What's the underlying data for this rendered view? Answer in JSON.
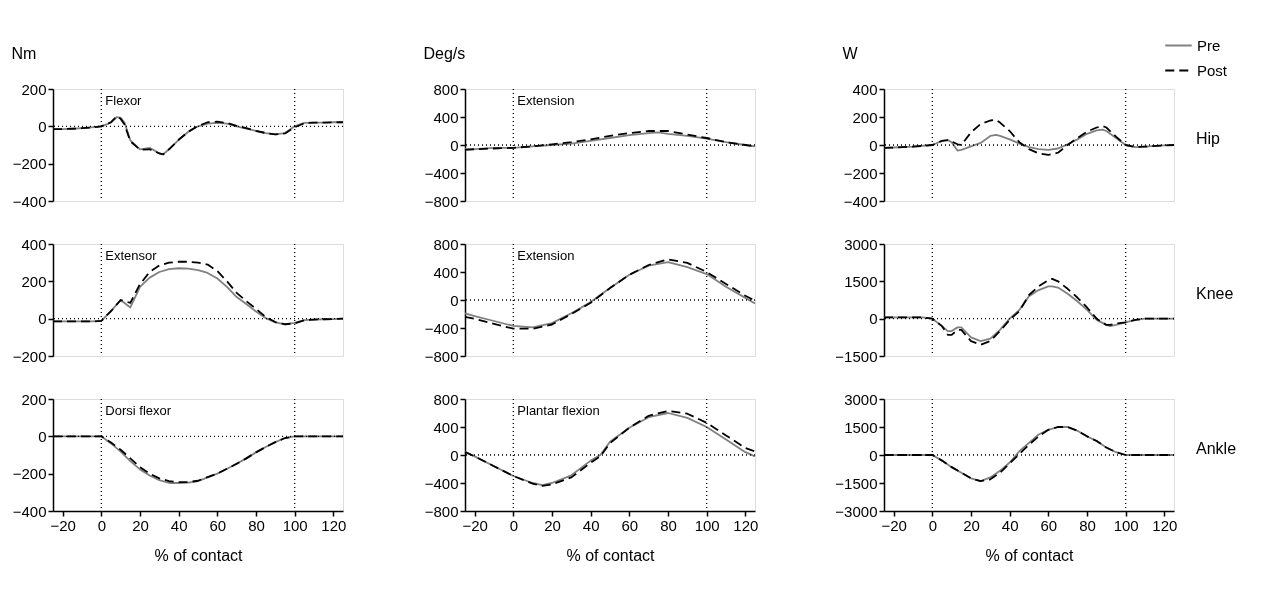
{
  "chart_data": [
    {
      "type": "line",
      "ylabel": "Nm",
      "annotations": [
        "Flexor"
      ],
      "tick_labels": "y",
      "xlim": [
        -25,
        125
      ],
      "ylim": [
        -400,
        200
      ],
      "yticks": [
        -400,
        -200,
        0,
        200
      ],
      "x": [
        -25,
        -20,
        -15,
        -10,
        -5,
        0,
        5,
        8,
        10,
        12,
        15,
        20,
        25,
        30,
        32,
        35,
        40,
        45,
        50,
        55,
        60,
        65,
        70,
        75,
        80,
        85,
        90,
        95,
        100,
        105,
        110,
        115,
        120,
        125
      ],
      "ref_lines": [
        {
          "axis": "x",
          "value": 0,
          "line_style": "dotted"
        },
        {
          "axis": "x",
          "value": 100,
          "line_style": "dotted"
        },
        {
          "axis": "y",
          "value": 0,
          "line_style": "dotted"
        }
      ],
      "series": [
        {
          "color": "#808080",
          "line_style": "solid",
          "values": [
            -15,
            -15,
            -13,
            -10,
            -6,
            0,
            20,
            50,
            45,
            20,
            -75,
            -123,
            -115,
            -145,
            -150,
            -123,
            -72,
            -29,
            0,
            14,
            19,
            14,
            0,
            -12,
            -25,
            -36,
            -43,
            -36,
            0,
            19,
            20,
            20,
            22,
            22
          ]
        },
        {
          "color": "#000000",
          "line_style": "dashed",
          "values": [
            -15,
            -15,
            -13,
            -10,
            -6,
            0,
            22,
            54,
            40,
            10,
            -80,
            -125,
            -123,
            -145,
            -150,
            -123,
            -72,
            -29,
            2,
            22,
            25,
            18,
            3,
            -10,
            -24,
            -36,
            -43,
            -38,
            -5,
            17,
            20,
            20,
            22,
            22
          ]
        }
      ]
    },
    {
      "type": "line",
      "ylabel": "Deg/s",
      "annotations": [
        "Extension"
      ],
      "tick_labels": "y",
      "xlim": [
        -25,
        125
      ],
      "ylim": [
        -800,
        800
      ],
      "yticks": [
        -800,
        -400,
        0,
        400,
        800
      ],
      "x": [
        -25,
        -20,
        -10,
        0,
        10,
        20,
        30,
        40,
        50,
        60,
        70,
        75,
        80,
        90,
        100,
        110,
        120,
        125
      ],
      "ref_lines": [
        {
          "axis": "x",
          "value": 0,
          "line_style": "dotted"
        },
        {
          "axis": "x",
          "value": 100,
          "line_style": "dotted"
        },
        {
          "axis": "y",
          "value": 0,
          "line_style": "dotted"
        }
      ],
      "series": [
        {
          "color": "#808080",
          "line_style": "solid",
          "values": [
            -60,
            -60,
            -40,
            -40,
            -20,
            0,
            20,
            60,
            100,
            140,
            170,
            180,
            160,
            130,
            90,
            40,
            0,
            -20
          ]
        },
        {
          "color": "#000000",
          "line_style": "dashed",
          "values": [
            -70,
            -60,
            -50,
            -40,
            -20,
            10,
            40,
            80,
            130,
            170,
            200,
            200,
            200,
            150,
            100,
            40,
            0,
            -20
          ]
        }
      ]
    },
    {
      "type": "line",
      "ylabel": "W",
      "annotations": [
        "Hip"
      ],
      "tick_labels": "y",
      "legend": "top right",
      "xlim": [
        -25,
        125
      ],
      "ylim": [
        -400,
        400
      ],
      "yticks": [
        -400,
        -200,
        0,
        200,
        400
      ],
      "x": [
        -25,
        -20,
        -10,
        0,
        5,
        8,
        10,
        13,
        15,
        20,
        25,
        30,
        33,
        35,
        40,
        45,
        50,
        55,
        60,
        65,
        70,
        75,
        80,
        85,
        88,
        90,
        95,
        100,
        105,
        110,
        120,
        125
      ],
      "ref_lines": [
        {
          "axis": "x",
          "value": 0,
          "line_style": "dotted"
        },
        {
          "axis": "x",
          "value": 100,
          "line_style": "dotted"
        },
        {
          "axis": "y",
          "value": 0,
          "line_style": "dotted"
        }
      ],
      "series": [
        {
          "name": "Pre",
          "color": "#808080",
          "line_style": "solid",
          "values": [
            -20,
            -18,
            -12,
            0,
            30,
            35,
            20,
            -40,
            -35,
            -10,
            15,
            65,
            72,
            65,
            40,
            10,
            -15,
            -30,
            -35,
            -25,
            5,
            40,
            80,
            105,
            110,
            100,
            50,
            0,
            -15,
            -12,
            -3,
            0
          ]
        },
        {
          "name": "Post",
          "color": "#000000",
          "line_style": "dashed",
          "values": [
            -20,
            -18,
            -12,
            0,
            30,
            35,
            25,
            5,
            0,
            90,
            150,
            175,
            180,
            160,
            100,
            20,
            -30,
            -60,
            -70,
            -55,
            0,
            50,
            95,
            125,
            135,
            125,
            60,
            0,
            -15,
            -12,
            -3,
            0
          ]
        }
      ]
    },
    {
      "type": "line",
      "annotations": [
        "Extensor"
      ],
      "tick_labels": "y",
      "xlim": [
        -25,
        125
      ],
      "ylim": [
        -200,
        400
      ],
      "yticks": [
        -200,
        0,
        200,
        400
      ],
      "x": [
        -25,
        -20,
        -15,
        -10,
        -5,
        0,
        5,
        10,
        15,
        20,
        25,
        30,
        35,
        40,
        45,
        50,
        55,
        60,
        65,
        70,
        75,
        80,
        85,
        90,
        95,
        100,
        105,
        110,
        115,
        120,
        125
      ],
      "ref_lines": [
        {
          "axis": "x",
          "value": 0,
          "line_style": "dotted"
        },
        {
          "axis": "x",
          "value": 100,
          "line_style": "dotted"
        },
        {
          "axis": "y",
          "value": 0,
          "line_style": "dotted"
        }
      ],
      "series": [
        {
          "color": "#808080",
          "line_style": "solid",
          "values": [
            -15,
            -15,
            -15,
            -15,
            -15,
            -12,
            40,
            100,
            60,
            170,
            220,
            250,
            265,
            270,
            268,
            260,
            245,
            215,
            170,
            116,
            79,
            38,
            3,
            -20,
            -31,
            -22,
            -8,
            -5,
            -3,
            -2,
            0
          ]
        },
        {
          "color": "#000000",
          "line_style": "dashed",
          "values": [
            -15,
            -15,
            -15,
            -15,
            -15,
            -12,
            40,
            100,
            85,
            185,
            250,
            285,
            300,
            305,
            305,
            300,
            290,
            255,
            200,
            138,
            94,
            53,
            9,
            -18,
            -30,
            -25,
            -8,
            -5,
            -3,
            -2,
            0
          ]
        }
      ]
    },
    {
      "type": "line",
      "annotations": [
        "Extension"
      ],
      "tick_labels": "y",
      "xlim": [
        -25,
        125
      ],
      "ylim": [
        -800,
        800
      ],
      "yticks": [
        -800,
        -400,
        0,
        400,
        800
      ],
      "x": [
        -25,
        -20,
        -10,
        0,
        10,
        20,
        30,
        40,
        50,
        60,
        70,
        80,
        90,
        100,
        110,
        120,
        125
      ],
      "ref_lines": [
        {
          "axis": "x",
          "value": 0,
          "line_style": "dotted"
        },
        {
          "axis": "x",
          "value": 100,
          "line_style": "dotted"
        },
        {
          "axis": "y",
          "value": 0,
          "line_style": "dotted"
        }
      ],
      "series": [
        {
          "color": "#808080",
          "line_style": "solid",
          "values": [
            -190,
            -230,
            -300,
            -370,
            -390,
            -330,
            -190,
            -30,
            170,
            360,
            490,
            540,
            470,
            370,
            190,
            30,
            -50
          ]
        },
        {
          "color": "#000000",
          "line_style": "dashed",
          "values": [
            -240,
            -270,
            -340,
            -410,
            -410,
            -350,
            -200,
            -40,
            170,
            360,
            500,
            580,
            530,
            400,
            230,
            60,
            -10
          ]
        }
      ]
    },
    {
      "type": "line",
      "annotations": [
        "Knee"
      ],
      "tick_labels": "y",
      "xlim": [
        -25,
        125
      ],
      "ylim": [
        -1500,
        3000
      ],
      "yticks": [
        -1500,
        0,
        1500,
        3000
      ],
      "x": [
        -25,
        -20,
        -10,
        -5,
        0,
        5,
        8,
        10,
        13,
        15,
        20,
        25,
        30,
        35,
        40,
        45,
        50,
        55,
        60,
        62,
        65,
        70,
        75,
        80,
        85,
        90,
        92,
        95,
        100,
        105,
        110,
        120,
        125
      ],
      "ref_lines": [
        {
          "axis": "x",
          "value": 0,
          "line_style": "dotted"
        },
        {
          "axis": "x",
          "value": 100,
          "line_style": "dotted"
        },
        {
          "axis": "y",
          "value": 0,
          "line_style": "dotted"
        }
      ],
      "series": [
        {
          "color": "#808080",
          "line_style": "solid",
          "values": [
            50,
            50,
            50,
            50,
            0,
            -300,
            -500,
            -500,
            -350,
            -350,
            -750,
            -900,
            -800,
            -450,
            0,
            350,
            900,
            1150,
            1300,
            1300,
            1250,
            1000,
            700,
            350,
            -50,
            -250,
            -300,
            -250,
            -150,
            -50,
            0,
            0,
            0
          ]
        },
        {
          "color": "#000000",
          "line_style": "dashed",
          "values": [
            50,
            50,
            50,
            50,
            0,
            -300,
            -650,
            -650,
            -450,
            -450,
            -900,
            -1050,
            -900,
            -500,
            -50,
            300,
            950,
            1300,
            1550,
            1600,
            1500,
            1200,
            850,
            450,
            0,
            -250,
            -250,
            -200,
            -150,
            -50,
            0,
            0,
            0
          ]
        }
      ]
    },
    {
      "type": "line",
      "xlabel": "% of contact",
      "annotations": [
        "Dorsi flexor"
      ],
      "xlim": [
        -25,
        125
      ],
      "xticks": [
        -20,
        0,
        20,
        40,
        60,
        80,
        100,
        120
      ],
      "ylim": [
        -400,
        200
      ],
      "yticks": [
        -400,
        -200,
        0,
        200
      ],
      "x": [
        -25,
        -20,
        -15,
        -10,
        -5,
        0,
        5,
        10,
        15,
        20,
        25,
        30,
        35,
        40,
        45,
        50,
        55,
        60,
        65,
        70,
        75,
        80,
        85,
        90,
        95,
        100,
        105,
        110,
        115,
        120,
        125
      ],
      "ref_lines": [
        {
          "axis": "x",
          "value": 0,
          "line_style": "dotted"
        },
        {
          "axis": "x",
          "value": 100,
          "line_style": "dotted"
        },
        {
          "axis": "y",
          "value": 0,
          "line_style": "dotted"
        }
      ],
      "series": [
        {
          "color": "#808080",
          "line_style": "solid",
          "values": [
            0,
            0,
            0,
            0,
            0,
            0,
            -38,
            -82,
            -133,
            -177,
            -210,
            -235,
            -250,
            -250,
            -248,
            -240,
            -220,
            -200,
            -174,
            -147,
            -118,
            -86,
            -57,
            -31,
            -9,
            0,
            0,
            0,
            0,
            0,
            0
          ]
        },
        {
          "color": "#000000",
          "line_style": "dashed",
          "values": [
            0,
            0,
            0,
            0,
            0,
            0,
            -33,
            -72,
            -118,
            -165,
            -200,
            -225,
            -240,
            -245,
            -245,
            -238,
            -218,
            -200,
            -174,
            -147,
            -118,
            -86,
            -57,
            -31,
            -9,
            0,
            0,
            0,
            0,
            0,
            0
          ]
        }
      ]
    },
    {
      "type": "line",
      "xlabel": "% of contact",
      "annotations": [
        "Plantar flexion"
      ],
      "xlim": [
        -25,
        125
      ],
      "xticks": [
        -20,
        0,
        20,
        40,
        60,
        80,
        100,
        120
      ],
      "ylim": [
        -800,
        800
      ],
      "yticks": [
        -800,
        -400,
        0,
        400,
        800
      ],
      "x": [
        -25,
        -20,
        -10,
        0,
        10,
        15,
        20,
        30,
        40,
        45,
        50,
        60,
        70,
        80,
        90,
        100,
        110,
        120,
        125
      ],
      "ref_lines": [
        {
          "axis": "x",
          "value": 0,
          "line_style": "dotted"
        },
        {
          "axis": "x",
          "value": 100,
          "line_style": "dotted"
        },
        {
          "axis": "y",
          "value": 0,
          "line_style": "dotted"
        }
      ],
      "series": [
        {
          "color": "#808080",
          "line_style": "solid",
          "values": [
            50,
            -20,
            -160,
            -300,
            -400,
            -430,
            -400,
            -290,
            -80,
            0,
            190,
            390,
            540,
            600,
            530,
            400,
            220,
            40,
            -20
          ]
        },
        {
          "color": "#000000",
          "line_style": "dashed",
          "values": [
            40,
            -20,
            -160,
            -300,
            -410,
            -440,
            -420,
            -320,
            -110,
            -20,
            170,
            390,
            560,
            630,
            590,
            460,
            280,
            100,
            50
          ]
        }
      ]
    },
    {
      "type": "line",
      "xlabel": "% of contact",
      "annotations": [
        "Ankle"
      ],
      "xlim": [
        -25,
        125
      ],
      "xticks": [
        -20,
        0,
        20,
        40,
        60,
        80,
        100,
        120
      ],
      "ylim": [
        -3000,
        3000
      ],
      "yticks": [
        -3000,
        -1500,
        0,
        1500,
        3000
      ],
      "x": [
        -25,
        -20,
        -15,
        -10,
        -5,
        0,
        5,
        10,
        15,
        20,
        25,
        30,
        35,
        40,
        45,
        50,
        55,
        60,
        65,
        70,
        75,
        80,
        85,
        90,
        95,
        100,
        105,
        110,
        115,
        120,
        125
      ],
      "ref_lines": [
        {
          "axis": "x",
          "value": 0,
          "line_style": "dotted"
        },
        {
          "axis": "x",
          "value": 100,
          "line_style": "dotted"
        },
        {
          "axis": "y",
          "value": 0,
          "line_style": "dotted"
        }
      ],
      "series": [
        {
          "color": "#808080",
          "line_style": "solid",
          "values": [
            0,
            0,
            0,
            0,
            0,
            0,
            -300,
            -650,
            -950,
            -1250,
            -1400,
            -1200,
            -850,
            -400,
            200,
            650,
            1100,
            1350,
            1500,
            1500,
            1300,
            1000,
            750,
            400,
            150,
            0,
            0,
            0,
            0,
            0,
            0
          ]
        },
        {
          "color": "#000000",
          "line_style": "dashed",
          "values": [
            0,
            0,
            0,
            0,
            0,
            0,
            -300,
            -650,
            -950,
            -1250,
            -1400,
            -1300,
            -950,
            -450,
            50,
            550,
            1000,
            1350,
            1500,
            1500,
            1300,
            1000,
            750,
            400,
            150,
            0,
            0,
            0,
            0,
            0,
            0
          ]
        }
      ]
    }
  ]
}
